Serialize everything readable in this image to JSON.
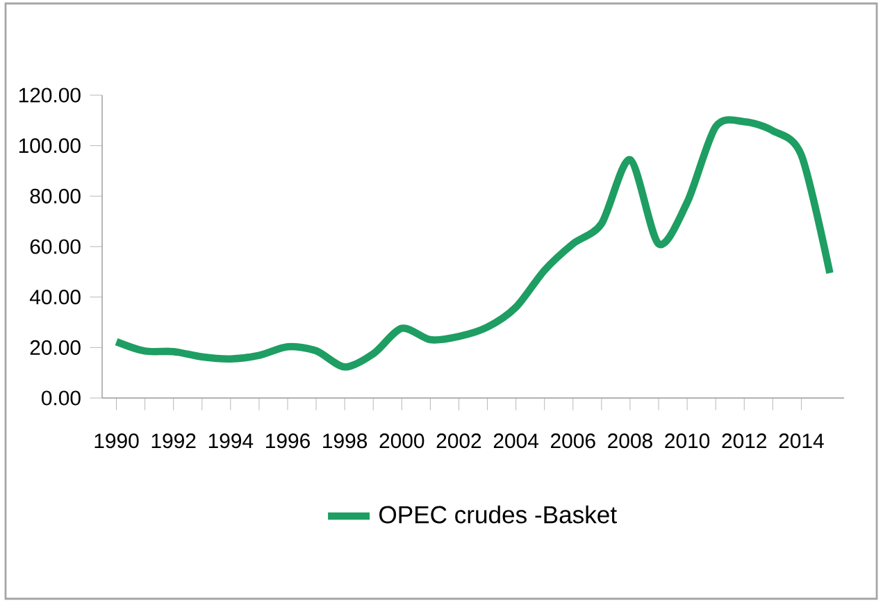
{
  "chart_data": {
    "type": "line",
    "x": [
      1990,
      1991,
      1992,
      1993,
      1994,
      1995,
      1996,
      1997,
      1998,
      1999,
      2000,
      2001,
      2002,
      2003,
      2004,
      2005,
      2006,
      2007,
      2008,
      2009,
      2010,
      2011,
      2012,
      2013,
      2014,
      2015
    ],
    "series": [
      {
        "name": "OPEC crudes -Basket",
        "color": "#1e9e62",
        "values": [
          22.3,
          18.6,
          18.4,
          16.3,
          15.5,
          16.9,
          20.3,
          18.7,
          12.3,
          17.5,
          27.6,
          23.1,
          24.4,
          28.1,
          36.0,
          50.6,
          61.1,
          69.1,
          94.4,
          61.1,
          77.5,
          107.5,
          109.5,
          105.9,
          96.3,
          49.5
        ]
      }
    ],
    "xlim": [
      1989.5,
      2015.5
    ],
    "ylim": [
      0,
      120
    ],
    "xticks": [
      1990,
      1992,
      1994,
      1996,
      1998,
      2000,
      2002,
      2004,
      2006,
      2008,
      2010,
      2012,
      2014
    ],
    "yticks": [
      {
        "value": 0,
        "label": "0.00"
      },
      {
        "value": 20,
        "label": "20.00"
      },
      {
        "value": 40,
        "label": "40.00"
      },
      {
        "value": 60,
        "label": "60.00"
      },
      {
        "value": 80,
        "label": "80.00"
      },
      {
        "value": 100,
        "label": "100.00"
      },
      {
        "value": 120,
        "label": "120.00"
      }
    ],
    "grid": false,
    "legend": "bottom",
    "marker": "none",
    "line_style": "solid"
  }
}
